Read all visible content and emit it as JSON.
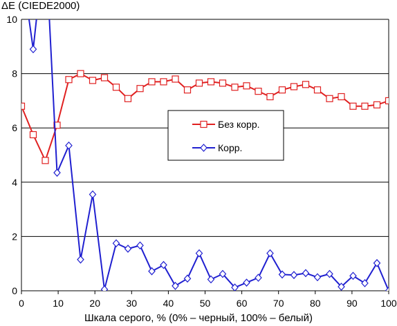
{
  "chart_data": {
    "type": "line",
    "ylabel": "ΔE (CIEDE2000)",
    "xlabel": "Шкала серого, % (0% – черный, 100% – белый)",
    "xlim": [
      0,
      100
    ],
    "ylim": [
      0,
      10
    ],
    "x_ticks": [
      0,
      10,
      20,
      30,
      40,
      50,
      60,
      70,
      80,
      90,
      100
    ],
    "y_ticks": [
      0,
      2,
      4,
      6,
      8,
      10
    ],
    "grid": "horizontal",
    "legend": "right-middle",
    "x": [
      0,
      3.2,
      6.5,
      9.7,
      12.9,
      16.1,
      19.4,
      22.6,
      25.8,
      29.0,
      32.3,
      35.5,
      38.7,
      41.9,
      45.2,
      48.4,
      51.6,
      54.8,
      58.1,
      61.3,
      64.5,
      67.7,
      71.0,
      74.2,
      77.4,
      80.6,
      83.9,
      87.1,
      90.3,
      93.5,
      96.8,
      100
    ],
    "series": [
      {
        "name": "Без корр.",
        "color": "#e02020",
        "marker": "square",
        "values": [
          6.8,
          5.75,
          4.8,
          6.1,
          7.78,
          8.0,
          7.75,
          7.85,
          7.5,
          7.08,
          7.45,
          7.7,
          7.7,
          7.8,
          7.4,
          7.65,
          7.7,
          7.65,
          7.5,
          7.55,
          7.35,
          7.15,
          7.4,
          7.52,
          7.6,
          7.4,
          7.08,
          7.15,
          6.8,
          6.8,
          6.85,
          7.0
        ]
      },
      {
        "name": "Корр.",
        "color": "#1f1fd0",
        "marker": "diamond",
        "values": [
          12.0,
          8.9,
          13.0,
          4.35,
          5.35,
          1.15,
          3.55,
          0.05,
          1.75,
          1.55,
          1.67,
          0.72,
          0.95,
          0.18,
          0.45,
          1.38,
          0.42,
          0.62,
          0.12,
          0.3,
          0.48,
          1.38,
          0.6,
          0.58,
          0.65,
          0.5,
          0.62,
          0.15,
          0.55,
          0.28,
          1.02,
          0.0
        ]
      }
    ]
  }
}
